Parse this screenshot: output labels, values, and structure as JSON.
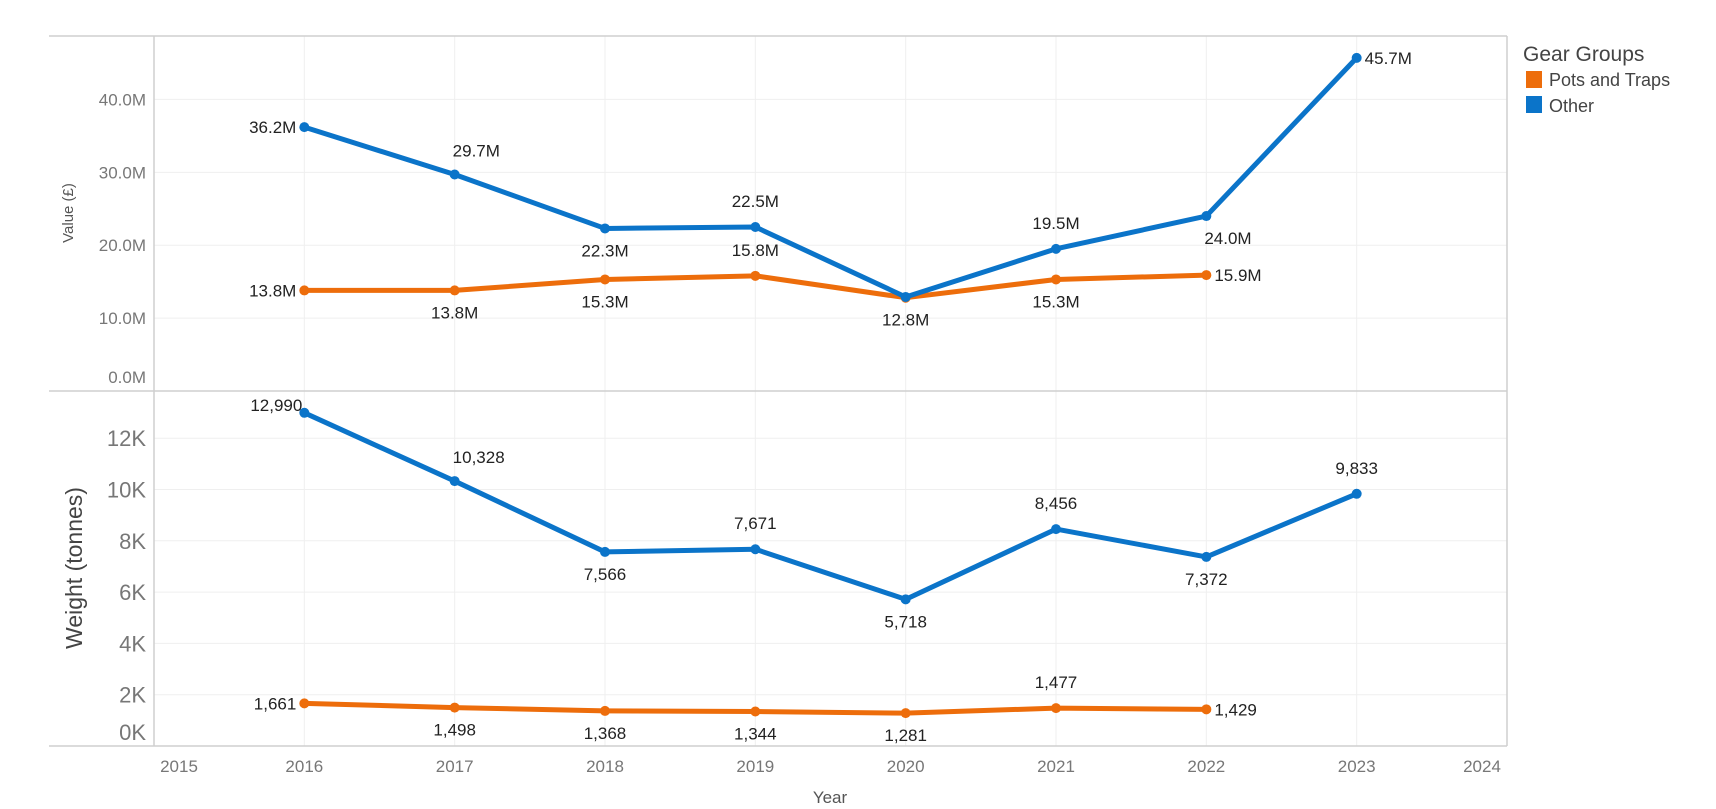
{
  "chart_data": [
    {
      "type": "line",
      "ylabel": "Value (£)",
      "ylim": [
        0,
        48700000
      ],
      "yticks": [
        "0.0M",
        "10.0M",
        "20.0M",
        "30.0M",
        "40.0M"
      ],
      "ytick_values": [
        0,
        10000000,
        20000000,
        30000000,
        40000000
      ],
      "grid": true,
      "x": [
        2016,
        2017,
        2018,
        2019,
        2020,
        2021,
        2022,
        2023
      ],
      "series": [
        {
          "name": "Pots and Traps",
          "color": "#ed6d0b",
          "values": [
            13800000,
            13800000,
            15300000,
            15800000,
            12800000,
            15300000,
            15900000,
            null
          ],
          "labels": [
            "13.8M",
            "13.8M",
            "15.3M",
            "15.8M",
            "12.8M",
            "15.3M",
            "15.9M",
            null
          ]
        },
        {
          "name": "Other",
          "color": "#0b74c9",
          "values": [
            36200000,
            29700000,
            22300000,
            22500000,
            12900000,
            19500000,
            24000000,
            45700000
          ],
          "labels": [
            "36.2M",
            "29.7M",
            "22.3M",
            "22.5M",
            null,
            "19.5M",
            "24.0M",
            "45.7M"
          ]
        }
      ]
    },
    {
      "type": "line",
      "ylabel": "Weight (tonnes)",
      "ylim": [
        0,
        13840
      ],
      "yticks": [
        "0K",
        "2K",
        "4K",
        "6K",
        "8K",
        "10K",
        "12K"
      ],
      "ytick_values": [
        0,
        2000,
        4000,
        6000,
        8000,
        10000,
        12000
      ],
      "grid": true,
      "x": [
        2016,
        2017,
        2018,
        2019,
        2020,
        2021,
        2022,
        2023
      ],
      "series": [
        {
          "name": "Pots and Traps",
          "color": "#ed6d0b",
          "values": [
            1661,
            1498,
            1368,
            1344,
            1281,
            1477,
            1429,
            null
          ],
          "labels": [
            "1,661",
            "1,498",
            "1,368",
            "1,344",
            "1,281",
            "1,477",
            "1,429",
            null
          ]
        },
        {
          "name": "Other",
          "color": "#0b74c9",
          "values": [
            12990,
            10328,
            7566,
            7671,
            5718,
            8456,
            7372,
            9833
          ],
          "labels": [
            "12,990",
            "10,328",
            "7,566",
            "7,671",
            "5,718",
            "8,456",
            "7,372",
            "9,833"
          ]
        }
      ]
    }
  ],
  "xaxis": {
    "label": "Year",
    "xlim": [
      2015,
      2024
    ],
    "ticks": [
      "2015",
      "2016",
      "2017",
      "2018",
      "2019",
      "2020",
      "2021",
      "2022",
      "2023",
      "2024"
    ]
  },
  "legend": {
    "title": "Gear Groups",
    "placement": "top-right",
    "items": [
      {
        "label": "Pots and Traps",
        "color": "#ed6d0b"
      },
      {
        "label": "Other",
        "color": "#0b74c9"
      }
    ]
  }
}
